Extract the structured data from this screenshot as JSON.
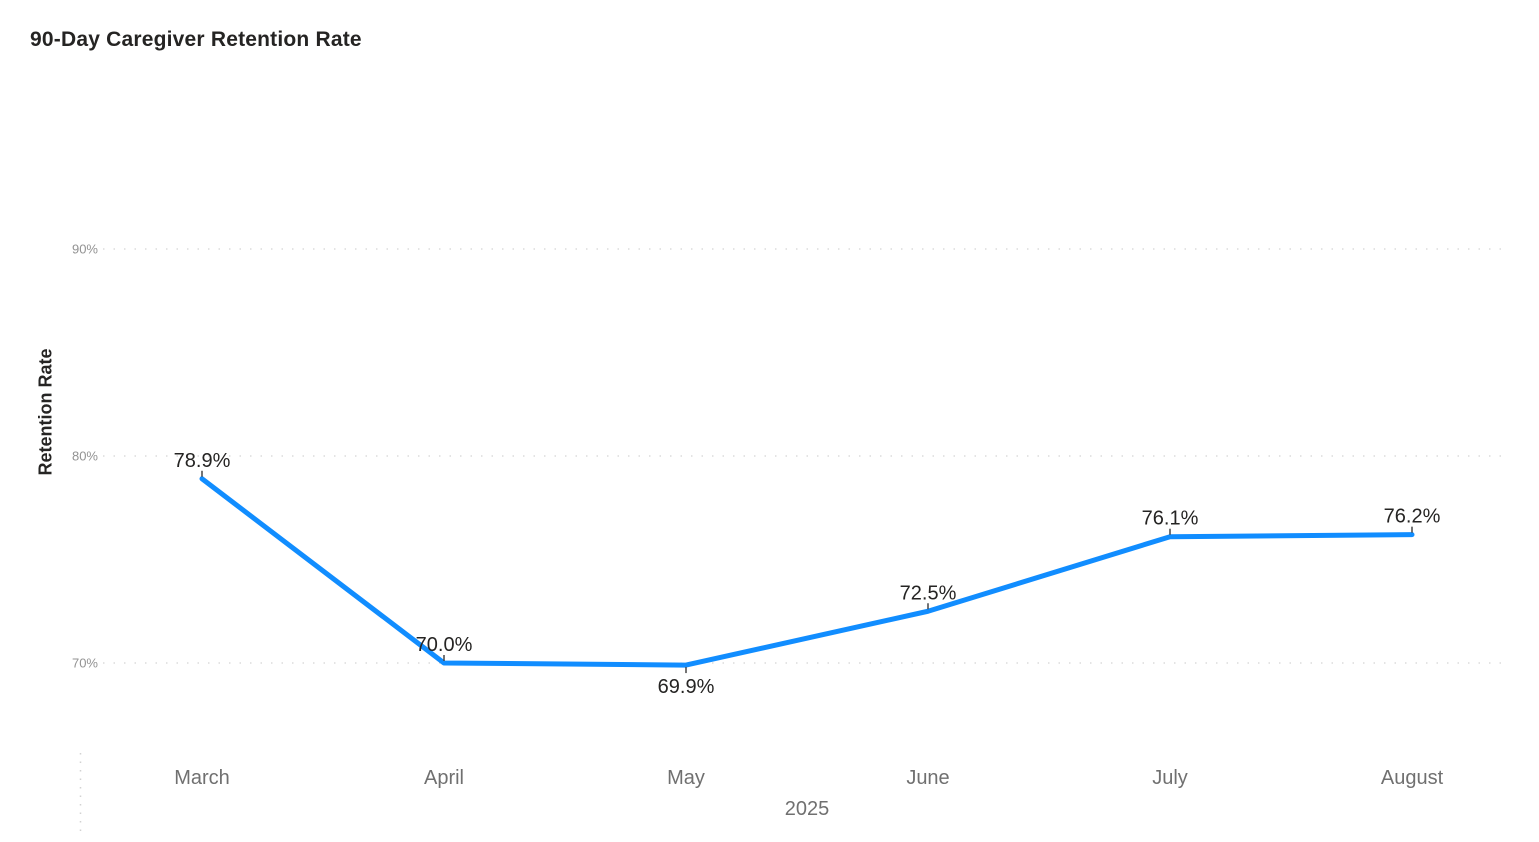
{
  "chart": {
    "title": "90-Day Caregiver Retention Rate",
    "accent_color": "#118DFF"
  },
  "chart_data": {
    "type": "line",
    "title": "90-Day Caregiver Retention Rate",
    "x": [
      "March",
      "April",
      "May",
      "June",
      "July",
      "August"
    ],
    "x_group": "2025",
    "xlabel": "2025",
    "ylabel": "Retention Rate",
    "series": [
      {
        "name": "Retention Rate",
        "values": [
          78.9,
          70.0,
          69.9,
          72.5,
          76.1,
          76.2
        ],
        "color": "#118DFF"
      }
    ],
    "data_labels": [
      "78.9%",
      "70.0%",
      "69.9%",
      "72.5%",
      "76.1%",
      "76.2%"
    ],
    "data_label_positions": [
      "above",
      "above",
      "below",
      "above",
      "above",
      "above"
    ],
    "y_ticks": [
      90,
      80,
      70
    ],
    "y_tick_labels": [
      "90%",
      "80%",
      "70%"
    ],
    "ylim": [
      68,
      92
    ],
    "grid": "horizontal-dotted",
    "legend": "none",
    "colors": {
      "line": "#118DFF",
      "gridline": "#c9c9c9",
      "y_tick_text": "#929292",
      "x_tick_text": "#707070",
      "data_label_text": "#252423",
      "point_marker": "#454545"
    }
  }
}
